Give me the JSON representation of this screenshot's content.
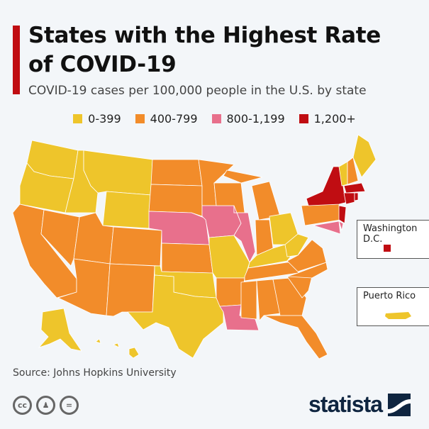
{
  "header": {
    "title": "States with the Highest Rate of COVID-19",
    "subtitle": "COVID-19 cases per 100,000 people in the U.S. by state"
  },
  "legend": [
    {
      "label": "0-399",
      "color": "#eec52b"
    },
    {
      "label": "400-799",
      "color": "#f28c2a"
    },
    {
      "label": "800-1,199",
      "color": "#e8708c"
    },
    {
      "label": "1,200+",
      "color": "#c00d12"
    }
  ],
  "states": {
    "WA": 0,
    "OR": 0,
    "ID": 0,
    "MT": 0,
    "WY": 0,
    "TX": 0,
    "OK": 0,
    "MO": 0,
    "KY": 0,
    "WV": 0,
    "OH": 0,
    "VT": 0,
    "ME": 0,
    "AK": 0,
    "HI": 0,
    "CA": 1,
    "NV": 1,
    "UT": 1,
    "AZ": 1,
    "CO": 1,
    "NM": 1,
    "ND": 1,
    "SD": 1,
    "KS": 1,
    "MN": 1,
    "WI": 1,
    "MI": 1,
    "IN": 1,
    "AR": 1,
    "TN": 1,
    "MS": 1,
    "AL": 1,
    "GA": 1,
    "FL": 1,
    "SC": 1,
    "NC": 1,
    "VA": 1,
    "PA": 1,
    "NH": 1,
    "NE": 2,
    "IA": 2,
    "IL": 2,
    "LA": 2,
    "MD": 2,
    "DE": 2,
    "NY": 3,
    "NJ": 3,
    "CT": 3,
    "RI": 3,
    "MA": 3
  },
  "insets": {
    "dc": {
      "label": "Washington D.C.",
      "category": 3
    },
    "pr": {
      "label": "Puerto Rico",
      "category": 0
    }
  },
  "footer": {
    "source": "Source: Johns Hopkins University",
    "brand": "statista",
    "license_icons": [
      "cc-icon",
      "attribution-icon",
      "no-derivatives-icon"
    ]
  }
}
